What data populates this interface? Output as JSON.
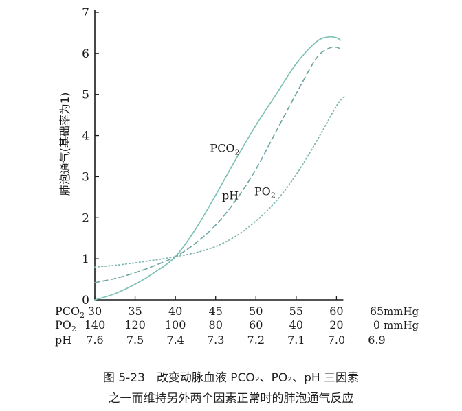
{
  "chart_data": {
    "type": "line",
    "ylabel": "肺泡通气(基础率为1)",
    "ylim": [
      0,
      7
    ],
    "yticks": [
      "0",
      "1",
      "2",
      "3",
      "4",
      "5",
      "6",
      "7"
    ],
    "xlim": [
      30,
      65
    ],
    "x_axes": [
      {
        "name": "PCO2",
        "label_text": "PCO",
        "label_sub": "2",
        "ticks": [
          "30",
          "35",
          "40",
          "45",
          "50",
          "55",
          "60",
          "65"
        ],
        "unit": "mmHg"
      },
      {
        "name": "PO2",
        "label_text": "PO",
        "label_sub": "2",
        "ticks": [
          "140",
          "120",
          "100",
          "80",
          "60",
          "40",
          "20",
          "0"
        ],
        "unit": "mmHg"
      },
      {
        "name": "pH",
        "label_text": "pH",
        "label_sub": "",
        "ticks": [
          "7.6",
          "7.5",
          "7.4",
          "7.3",
          "7.2",
          "7.1",
          "7.0",
          "6.9"
        ],
        "unit": ""
      }
    ],
    "series": [
      {
        "name": "PCO2",
        "label_text": "PCO",
        "label_sub": "2",
        "style": "solid",
        "color": "#7cc1b6",
        "x": [
          30,
          32.5,
          35,
          37.5,
          40,
          42.5,
          45,
          47.5,
          50,
          52.5,
          55,
          57.5,
          59,
          60,
          60.5
        ],
        "y": [
          0.0,
          0.15,
          0.38,
          0.68,
          1.05,
          1.72,
          2.55,
          3.42,
          4.25,
          5.0,
          5.75,
          6.28,
          6.4,
          6.38,
          6.32
        ]
      },
      {
        "name": "pH",
        "label_text": "pH",
        "label_sub": "",
        "style": "dashed",
        "color": "#6fa8a4",
        "x": [
          30,
          32.5,
          35,
          37.5,
          40,
          42.5,
          45,
          47.5,
          50,
          52.5,
          55,
          57.5,
          59,
          60,
          60.5
        ],
        "y": [
          0.42,
          0.52,
          0.66,
          0.84,
          1.05,
          1.38,
          1.82,
          2.42,
          3.18,
          4.1,
          5.02,
          5.88,
          6.12,
          6.15,
          6.1
        ]
      },
      {
        "name": "PO2",
        "label_text": "PO",
        "label_sub": "2",
        "style": "dotted",
        "color": "#7fb8b0",
        "x": [
          30,
          32.5,
          35,
          37.5,
          40,
          42.5,
          45,
          47.5,
          50,
          52.5,
          55,
          57.5,
          60,
          61
        ],
        "y": [
          0.8,
          0.84,
          0.9,
          0.97,
          1.05,
          1.15,
          1.3,
          1.55,
          1.92,
          2.4,
          3.05,
          3.85,
          4.72,
          4.95
        ]
      }
    ],
    "grid": false,
    "legend": "none"
  },
  "caption": {
    "line1": "图 5-23　改变动脉血液 PCO₂、PO₂、pH 三因素",
    "line2": "之一而维持另外两个因素正常时的肺泡通气反应"
  }
}
